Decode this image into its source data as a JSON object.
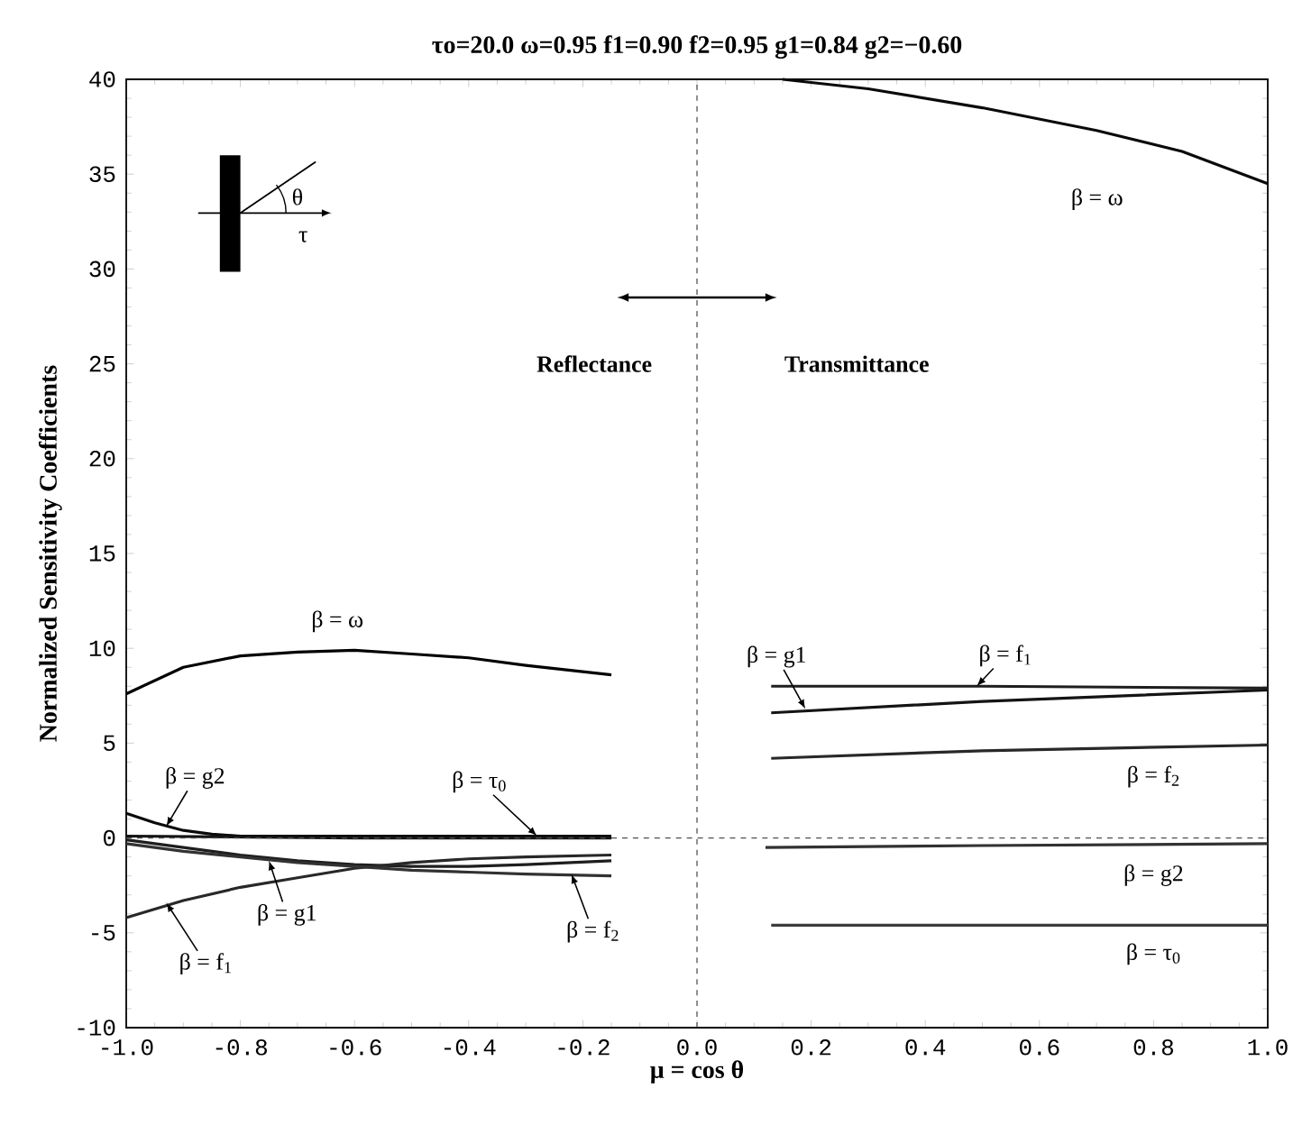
{
  "chart_data": {
    "type": "line",
    "title": "τo=20.0  ω=0.95 f1=0.90 f2=0.95 g1=0.84 g2=−0.60",
    "xlabel": "μ = cos θ",
    "ylabel": "Normalized Sensitivity Coefficients",
    "xlim": [
      -1.0,
      1.0
    ],
    "ylim": [
      -10,
      40
    ],
    "xticks": [
      {
        "value": -1.0,
        "label": "-1.0"
      },
      {
        "value": -0.8,
        "label": "-0.8"
      },
      {
        "value": -0.6,
        "label": "-0.6"
      },
      {
        "value": -0.4,
        "label": "-0.4"
      },
      {
        "value": -0.2,
        "label": "-0.2"
      },
      {
        "value": 0.0,
        "label": "0.0"
      },
      {
        "value": 0.2,
        "label": "0.2"
      },
      {
        "value": 0.4,
        "label": "0.4"
      },
      {
        "value": 0.6,
        "label": "0.6"
      },
      {
        "value": 0.8,
        "label": "0.8"
      },
      {
        "value": 1.0,
        "label": "1.0"
      }
    ],
    "yticks": [
      -10,
      -5,
      0,
      5,
      10,
      15,
      20,
      25,
      30,
      35,
      40
    ],
    "marker": "none",
    "line_style": "solid",
    "series": [
      {
        "color": "#000000",
        "x": [
          -1.0,
          -0.9,
          -0.8,
          -0.7,
          -0.6,
          -0.5,
          -0.4,
          -0.3,
          -0.15
        ],
        "values": [
          7.6,
          9.0,
          9.6,
          9.8,
          9.9,
          9.7,
          9.5,
          9.1,
          8.6
        ]
      },
      {
        "color": "#0a0a0a",
        "x": [
          -1.0,
          -0.95,
          -0.9,
          -0.85,
          -0.8,
          -0.6,
          -0.4,
          -0.15
        ],
        "values": [
          1.3,
          0.8,
          0.4,
          0.2,
          0.1,
          0.1,
          0.1,
          0.1
        ]
      },
      {
        "color": "#141414",
        "x": [
          -1.0,
          -0.6,
          -0.15
        ],
        "values": [
          0.1,
          0.0,
          0.0
        ]
      },
      {
        "color": "#1e1e1e",
        "x": [
          -1.0,
          -0.9,
          -0.8,
          -0.7,
          -0.6,
          -0.5,
          -0.4,
          -0.3,
          -0.15
        ],
        "values": [
          -0.1,
          -0.5,
          -0.9,
          -1.2,
          -1.4,
          -1.5,
          -1.5,
          -1.4,
          -1.2
        ]
      },
      {
        "color": "#282828",
        "x": [
          -1.0,
          -0.9,
          -0.8,
          -0.7,
          -0.6,
          -0.5,
          -0.4,
          -0.3,
          -0.15
        ],
        "values": [
          -4.2,
          -3.3,
          -2.6,
          -2.1,
          -1.6,
          -1.3,
          -1.1,
          -1.0,
          -0.9
        ]
      },
      {
        "color": "#323232",
        "x": [
          -1.0,
          -0.9,
          -0.8,
          -0.7,
          -0.6,
          -0.5,
          -0.4,
          -0.3,
          -0.15
        ],
        "values": [
          -0.3,
          -0.7,
          -1.0,
          -1.3,
          -1.5,
          -1.7,
          -1.8,
          -1.9,
          -2.0
        ]
      },
      {
        "color": "#0a0a0a",
        "x": [
          0.15,
          0.3,
          0.5,
          0.7,
          0.85,
          1.0
        ],
        "values": [
          40,
          39.5,
          38.5,
          37.3,
          36.2,
          34.5
        ]
      },
      {
        "color": "#141414",
        "x": [
          0.13,
          0.5,
          1.0
        ],
        "values": [
          6.6,
          7.2,
          7.8
        ]
      },
      {
        "color": "#1e1e1e",
        "x": [
          0.13,
          0.5,
          1.0
        ],
        "values": [
          8.0,
          8.0,
          7.9
        ]
      },
      {
        "color": "#282828",
        "x": [
          0.13,
          0.5,
          1.0
        ],
        "values": [
          4.2,
          4.6,
          4.9
        ]
      },
      {
        "color": "#323232",
        "x": [
          0.12,
          0.5,
          1.0
        ],
        "values": [
          -0.5,
          -0.4,
          -0.3
        ]
      },
      {
        "color": "#3c3c3c",
        "x": [
          0.13,
          0.5,
          1.0
        ],
        "values": [
          -4.6,
          -4.6,
          -4.6
        ]
      }
    ],
    "ref_lines": [
      {
        "axis": "x",
        "value": 0.0,
        "color": "#464646",
        "line_style": "dashed"
      },
      {
        "axis": "y",
        "value": 0,
        "color": "#505050",
        "line_style": "dashed"
      }
    ],
    "annotations": [
      {
        "text": "β = ω",
        "x": -0.63,
        "y": 9.9
      },
      {
        "text": "β = g2",
        "x": -0.93,
        "y": 0.6
      },
      {
        "text": "β = τ$_{0}$",
        "x": -0.28,
        "y": 0.1
      },
      {
        "text": "β = g1",
        "x": -0.75,
        "y": -1.2
      },
      {
        "text": "β = f$_{1}$",
        "x": -0.93,
        "y": -3.4
      },
      {
        "text": "β = f$_{2}$",
        "x": -0.22,
        "y": -1.9
      },
      {
        "text": "β = ω",
        "x": 0.78,
        "y": 37.0
      },
      {
        "text": "β = g1",
        "x": 0.19,
        "y": 6.8
      },
      {
        "text": "β = f$_{1}$",
        "x": 0.49,
        "y": 8.0
      },
      {
        "text": "β = f$_{2}$",
        "x": 0.8,
        "y": 4.85
      },
      {
        "text": "β = g2",
        "x": 0.8,
        "y": -0.35
      },
      {
        "text": "β = τ$_{0}$",
        "x": 0.8,
        "y": -4.6
      },
      "Reflectance",
      "Transmittance",
      "θ",
      "τ"
    ]
  }
}
